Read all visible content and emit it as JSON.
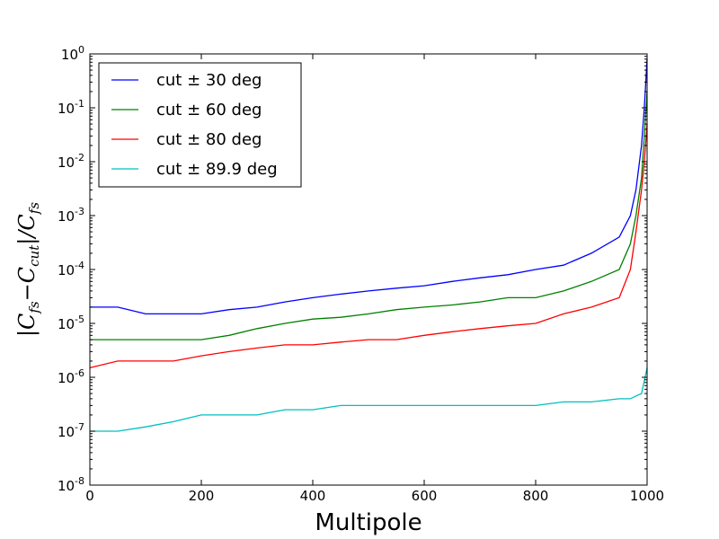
{
  "chart_data": {
    "type": "line",
    "title": "",
    "xlabel": "Multipole",
    "ylabel": {
      "open": "|C",
      "sub1": "fs",
      "mid": "−C",
      "sub2": "cut",
      "slash": "|/C",
      "sub3": "fs"
    },
    "xlim": [
      0,
      1000
    ],
    "ylim": [
      1e-08,
      1
    ],
    "yscale": "log",
    "xticks": [
      0,
      200,
      400,
      600,
      800,
      1000
    ],
    "xtick_labels": [
      "0",
      "200",
      "400",
      "600",
      "800",
      "1000"
    ],
    "yticks": [
      1e-08,
      1e-07,
      1e-06,
      1e-05,
      0.0001,
      0.001,
      0.01,
      0.1,
      1
    ],
    "ytick_labels": [
      {
        "base": "10",
        "exp": "-8"
      },
      {
        "base": "10",
        "exp": "-7"
      },
      {
        "base": "10",
        "exp": "-6"
      },
      {
        "base": "10",
        "exp": "-5"
      },
      {
        "base": "10",
        "exp": "-4"
      },
      {
        "base": "10",
        "exp": "-3"
      },
      {
        "base": "10",
        "exp": "-2"
      },
      {
        "base": "10",
        "exp": "-1"
      },
      {
        "base": "10",
        "exp": "0"
      }
    ],
    "grid": false,
    "legend_position": "top-left",
    "series": [
      {
        "name": "cut ± 30 deg",
        "color": "#0000ff",
        "x": [
          0,
          50,
          100,
          150,
          200,
          250,
          300,
          350,
          400,
          450,
          500,
          550,
          600,
          650,
          700,
          750,
          800,
          850,
          900,
          950,
          970,
          980,
          990,
          995,
          1000
        ],
        "y": [
          2e-05,
          2e-05,
          1.5e-05,
          1.5e-05,
          1.5e-05,
          1.8e-05,
          2e-05,
          2.5e-05,
          3e-05,
          3.5e-05,
          4e-05,
          4.5e-05,
          5e-05,
          6e-05,
          7e-05,
          8e-05,
          0.0001,
          0.00012,
          0.0002,
          0.0004,
          0.001,
          0.003,
          0.02,
          0.1,
          0.8
        ]
      },
      {
        "name": "cut ± 60 deg",
        "color": "#008000",
        "x": [
          0,
          50,
          100,
          150,
          200,
          250,
          300,
          350,
          400,
          450,
          500,
          550,
          600,
          650,
          700,
          750,
          800,
          850,
          900,
          950,
          970,
          980,
          990,
          995,
          1000
        ],
        "y": [
          5e-06,
          5e-06,
          5e-06,
          5e-06,
          5e-06,
          6e-06,
          8e-06,
          1e-05,
          1.2e-05,
          1.3e-05,
          1.5e-05,
          1.8e-05,
          2e-05,
          2.2e-05,
          2.5e-05,
          3e-05,
          3e-05,
          4e-05,
          6e-05,
          0.0001,
          0.0003,
          0.001,
          0.005,
          0.03,
          0.2
        ]
      },
      {
        "name": "cut ± 80 deg",
        "color": "#ff0000",
        "x": [
          0,
          50,
          100,
          150,
          200,
          250,
          300,
          350,
          400,
          450,
          500,
          550,
          600,
          650,
          700,
          750,
          800,
          850,
          900,
          950,
          970,
          980,
          990,
          995,
          1000
        ],
        "y": [
          1.5e-06,
          2e-06,
          2e-06,
          2e-06,
          2.5e-06,
          3e-06,
          3.5e-06,
          4e-06,
          4e-06,
          4.5e-06,
          5e-06,
          5e-06,
          6e-06,
          7e-06,
          8e-06,
          9e-06,
          1e-05,
          1.5e-05,
          2e-05,
          3e-05,
          0.0001,
          0.0005,
          0.003,
          0.01,
          0.05
        ]
      },
      {
        "name": "cut ± 89.9 deg",
        "color": "#00bfbf",
        "x": [
          0,
          50,
          100,
          150,
          200,
          250,
          300,
          350,
          400,
          450,
          500,
          550,
          600,
          650,
          700,
          750,
          800,
          850,
          900,
          950,
          970,
          980,
          990,
          1000
        ],
        "y": [
          1e-07,
          1e-07,
          1.2e-07,
          1.5e-07,
          2e-07,
          2e-07,
          2e-07,
          2.5e-07,
          2.5e-07,
          3e-07,
          3e-07,
          3e-07,
          3e-07,
          3e-07,
          3e-07,
          3e-07,
          3e-07,
          3.5e-07,
          3.5e-07,
          4e-07,
          4e-07,
          4.5e-07,
          5e-07,
          1.5e-06
        ]
      }
    ]
  }
}
